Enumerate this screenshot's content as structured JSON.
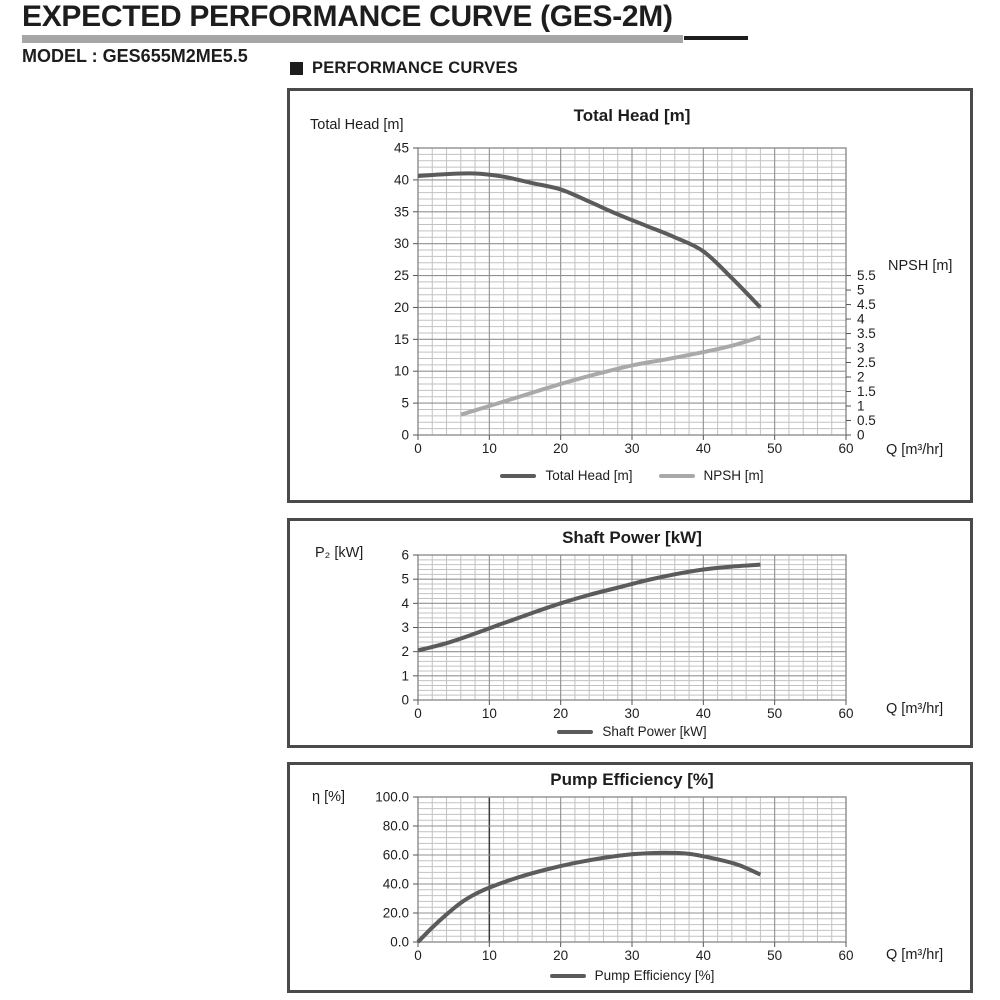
{
  "page": {
    "title": "EXPECTED PERFORMANCE CURVE (GES-2M)",
    "model_label": "MODEL : GES655M2ME5.5",
    "section_label": "PERFORMANCE CURVES"
  },
  "colors": {
    "text": "#1d1d1d",
    "header_bar_gray": "#a6a6a6",
    "panel_border": "#4a4a4a",
    "grid_minor": "#c2c2c2",
    "grid_major": "#909090",
    "highlight_line": "#3a3a3a",
    "tick": "#555555",
    "primary_curve": "#5b5b5b",
    "secondary_curve": "#a9a9a9"
  },
  "chart_data": [
    {
      "type": "line",
      "title": "Total Head [m]",
      "y_axis_label": "Total Head [m]",
      "x_axis_label": "Q [m³/hr]",
      "y2_axis_label": "NPSH [m]",
      "xlim": [
        0,
        60
      ],
      "x_major": 10,
      "x_minor": 2,
      "ylim": [
        0,
        45
      ],
      "y_major": 5,
      "y_minor": 1,
      "y2lim": [
        0,
        5.5
      ],
      "y2_major": 0.5,
      "y2_span_in_y": [
        0,
        25
      ],
      "grid": true,
      "legend_position": "bottom",
      "legend": [
        "Total Head [m]",
        "NPSH [m]"
      ],
      "series": [
        {
          "name": "Total Head [m]",
          "axis": "y",
          "color_key": "primary_curve",
          "x": [
            0,
            4,
            8,
            12,
            16,
            20,
            24,
            28,
            32,
            36,
            40,
            44,
            48
          ],
          "y": [
            40.6,
            40.9,
            41.0,
            40.5,
            39.5,
            38.5,
            36.6,
            34.6,
            32.8,
            31.0,
            28.8,
            24.6,
            20.0
          ]
        },
        {
          "name": "NPSH [m]",
          "axis": "y2",
          "color_key": "secondary_curve",
          "x": [
            6,
            10,
            15,
            20,
            25,
            30,
            35,
            40,
            44,
            48
          ],
          "y": [
            0.7,
            1.0,
            1.38,
            1.76,
            2.1,
            2.4,
            2.62,
            2.86,
            3.08,
            3.38
          ]
        }
      ]
    },
    {
      "type": "line",
      "title": "Shaft Power [kW]",
      "y_axis_label": "P₂ [kW]",
      "x_axis_label": "Q [m³/hr]",
      "xlim": [
        0,
        60
      ],
      "x_major": 10,
      "x_minor": 2,
      "ylim": [
        0,
        6
      ],
      "y_major": 1,
      "y_minor": 0.2,
      "grid": true,
      "legend_position": "bottom",
      "legend": [
        "Shaft Power [kW]"
      ],
      "series": [
        {
          "name": "Shaft Power [kW]",
          "axis": "y",
          "color_key": "primary_curve",
          "x": [
            0,
            4,
            8,
            12,
            16,
            20,
            24,
            28,
            32,
            36,
            40,
            44,
            48
          ],
          "y": [
            2.05,
            2.35,
            2.75,
            3.18,
            3.6,
            4.0,
            4.35,
            4.65,
            4.95,
            5.2,
            5.4,
            5.52,
            5.6
          ]
        }
      ]
    },
    {
      "type": "line",
      "title": "Pump Efficiency [%]",
      "y_axis_label": "η [%]",
      "x_axis_label": "Q [m³/hr]",
      "xlim": [
        0,
        60
      ],
      "x_major": 10,
      "x_minor": 2,
      "ylim": [
        0,
        100
      ],
      "y_major": 20,
      "y_minor": 4,
      "y_tick_decimals": 1,
      "highlight_x": 10,
      "grid": true,
      "legend_position": "bottom",
      "legend": [
        "Pump Efficiency [%]"
      ],
      "series": [
        {
          "name": "Pump Efficiency [%]",
          "axis": "y",
          "color_key": "primary_curve",
          "x": [
            0,
            2,
            4,
            6,
            8,
            10,
            14,
            18,
            22,
            26,
            30,
            34,
            38,
            42,
            45,
            48
          ],
          "y": [
            0,
            10,
            19,
            27,
            33,
            37.5,
            44.5,
            50,
            54.5,
            58,
            60.5,
            61.5,
            60.8,
            57,
            53,
            46.5
          ]
        }
      ]
    }
  ]
}
